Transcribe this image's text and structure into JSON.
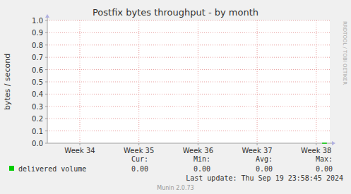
{
  "chart_data": {
    "type": "line",
    "title": "Postfix bytes throughput - by month",
    "y_label": "bytes / second",
    "x": [
      38.1,
      38.18
    ],
    "xlim": [
      33.45,
      38.23
    ],
    "xticks": [
      {
        "value": 34,
        "label": "Week 34"
      },
      {
        "value": 35,
        "label": "Week 35"
      },
      {
        "value": 36,
        "label": "Week 36"
      },
      {
        "value": 37,
        "label": "Week 37"
      },
      {
        "value": 38,
        "label": "Week 38"
      }
    ],
    "ylim": [
      0,
      1
    ],
    "yticks": [
      {
        "value": 0,
        "label": "0.0"
      },
      0.1,
      0.2,
      0.3,
      0.4,
      0.5,
      0.6,
      0.7,
      0.8,
      0.9,
      {
        "value": 1,
        "label": "1.0"
      }
    ],
    "grid": true,
    "legend": "bottom",
    "series": [
      {
        "name": "delivered volume",
        "color": "#00cc00",
        "values": [
          0,
          0
        ]
      }
    ],
    "stats": {
      "labels": [
        "Cur:",
        "Min:",
        "Avg:",
        "Max:"
      ],
      "values": [
        0,
        0,
        0,
        0
      ],
      "value_labels": [
        "0.00",
        "0.00",
        "0.00",
        "0.00"
      ]
    },
    "last_update": "Last update: Thu Sep 19 23:58:45 2024",
    "footer": "Munin 2.0.73",
    "watermark": "RRDTOOL / TOBI OETIKER"
  }
}
